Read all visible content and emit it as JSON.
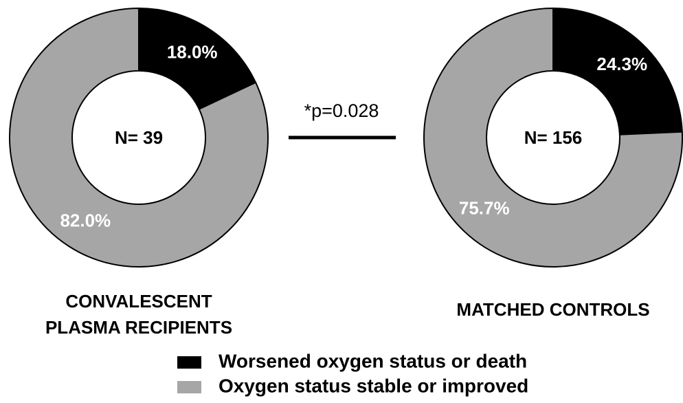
{
  "chart_data": [
    {
      "type": "pie",
      "title": [
        "CONVALESCENT",
        "PLASMA RECIPIENTS"
      ],
      "center_label": "N= 39",
      "categories": [
        "Worsened oxygen status or death",
        "Oxygen status stable or improved"
      ],
      "values": [
        18.0,
        82.0
      ],
      "value_labels": [
        "18.0%",
        "82.0%"
      ],
      "colors": [
        "#000000",
        "#a6a6a6"
      ]
    },
    {
      "type": "pie",
      "title": [
        "MATCHED CONTROLS"
      ],
      "center_label": "N= 156",
      "categories": [
        "Worsened oxygen status or death",
        "Oxygen status stable or improved"
      ],
      "values": [
        24.3,
        75.7
      ],
      "value_labels": [
        "24.3%",
        "75.7%"
      ],
      "colors": [
        "#000000",
        "#a6a6a6"
      ]
    }
  ],
  "annotation": "*p=0.028"
}
